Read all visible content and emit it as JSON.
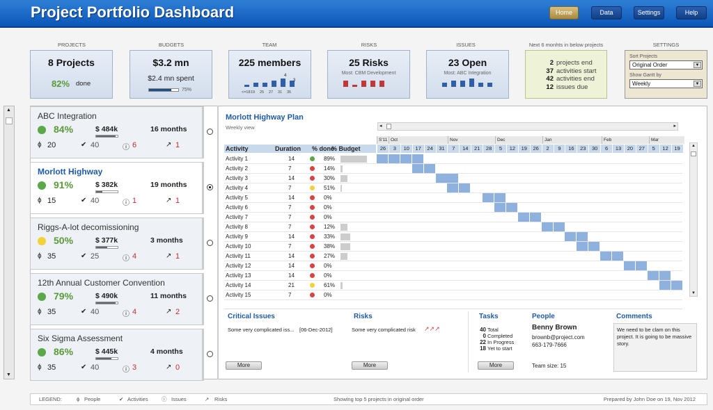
{
  "header": {
    "title": "Project Portfolio Dashboard",
    "nav": [
      "Home",
      "Data",
      "Settings",
      "Help"
    ]
  },
  "kpis": {
    "projects": {
      "label": "PROJECTS",
      "value": "8 Projects",
      "pct": "82%",
      "pct_suffix": "done"
    },
    "budgets": {
      "label": "BUDGETS",
      "value": "$3.2 mn",
      "spent": "$2.4 mn spent",
      "bar_pct": "75%",
      "fill": 0.75
    },
    "team": {
      "label": "TEAM",
      "value": "225 members",
      "ticks": [
        "<=18",
        "19",
        "25",
        "27",
        "31",
        "35"
      ],
      "top_labels": [
        "4",
        "3"
      ],
      "heights": [
        1,
        2,
        2,
        3,
        4,
        3
      ]
    },
    "risks": {
      "label": "RISKS",
      "value": "25 Risks",
      "most": "Most: CBM Development",
      "heights": [
        3,
        1,
        3,
        3,
        3
      ]
    },
    "issues": {
      "label": "ISSUES",
      "value": "23 Open",
      "most": "Most: ABC Integration",
      "heights": [
        2,
        3,
        3,
        4,
        2,
        2
      ]
    }
  },
  "next": {
    "label": "Next 6 monhts in below projects",
    "items": [
      {
        "n": "2",
        "t": "projects end"
      },
      {
        "n": "37",
        "t": "activities start"
      },
      {
        "n": "42",
        "t": "activities end"
      },
      {
        "n": "12",
        "t": "issues due"
      }
    ]
  },
  "settings": {
    "label": "SETTINGS",
    "sort_label": "Sort Projects",
    "sort_value": "Original Order",
    "gantt_label": "Show Gantt by",
    "gantt_value": "Weekly"
  },
  "projects": [
    {
      "name": "ABC Integration",
      "pct": "84%",
      "status": "green",
      "budget": "$ 484k",
      "fill": 0.9,
      "months": "16 months",
      "people": "20",
      "acts": "40",
      "issues": "6",
      "risks": "1"
    },
    {
      "name": "Morlott Highway",
      "pct": "91%",
      "status": "green",
      "budget": "$ 382k",
      "fill": 0.3,
      "months": "19 months",
      "people": "15",
      "acts": "40",
      "issues": "1",
      "risks": "1"
    },
    {
      "name": "Riggs-A-lot decomissioning",
      "pct": "50%",
      "status": "yellow",
      "budget": "$ 377k",
      "fill": 0.5,
      "months": "3 months",
      "people": "35",
      "acts": "25",
      "issues": "4",
      "risks": "1"
    },
    {
      "name": "12th Annual Customer Convention",
      "pct": "79%",
      "status": "green",
      "budget": "$ 490k",
      "fill": 0.9,
      "months": "11 months",
      "people": "35",
      "acts": "40",
      "issues": "4",
      "risks": "2"
    },
    {
      "name": "Six Sigma Assessment",
      "pct": "86%",
      "status": "green",
      "budget": "$ 445k",
      "fill": 0.7,
      "months": "4 months",
      "people": "35",
      "acts": "40",
      "issues": "3",
      "risks": "0"
    }
  ],
  "plan": {
    "title": "Morlott Highway Plan",
    "subtitle": "Weekly view",
    "cols": {
      "activity": "Activity",
      "duration": "Duration",
      "done": "% done",
      "budget": "% Budget"
    },
    "months": [
      "S'11",
      "Oct",
      "Nov",
      "Dec",
      "Jan",
      "Feb",
      "Mar"
    ],
    "weeks": [
      "26",
      "3",
      "10",
      "17",
      "24",
      "31",
      "7",
      "14",
      "21",
      "28",
      "5",
      "12",
      "19",
      "26",
      "2",
      "9",
      "16",
      "23",
      "30",
      "6",
      "13",
      "20",
      "27",
      "5",
      "12",
      "19"
    ],
    "activities": [
      {
        "n": "Activity 1",
        "d": "14",
        "s": "green",
        "p": "89%",
        "b": 0.95,
        "st": 0,
        "len": 4
      },
      {
        "n": "Activity 2",
        "d": "7",
        "s": "red",
        "p": "14%",
        "b": 0.08,
        "st": 3,
        "len": 2
      },
      {
        "n": "Activity 3",
        "d": "14",
        "s": "red",
        "p": "30%",
        "b": 0.25,
        "st": 5,
        "len": 2
      },
      {
        "n": "Activity 4",
        "d": "7",
        "s": "yellow",
        "p": "51%",
        "b": 0.05,
        "st": 6,
        "len": 2
      },
      {
        "n": "Activity 5",
        "d": "14",
        "s": "red",
        "p": "0%",
        "b": 0,
        "st": 9,
        "len": 2
      },
      {
        "n": "Activity 6",
        "d": "7",
        "s": "red",
        "p": "0%",
        "b": 0,
        "st": 10,
        "len": 2
      },
      {
        "n": "Activity 7",
        "d": "7",
        "s": "red",
        "p": "0%",
        "b": 0,
        "st": 12,
        "len": 2
      },
      {
        "n": "Activity 8",
        "d": "7",
        "s": "red",
        "p": "12%",
        "b": 0.25,
        "st": 14,
        "len": 2
      },
      {
        "n": "Activity 9",
        "d": "14",
        "s": "red",
        "p": "33%",
        "b": 0.35,
        "st": 16,
        "len": 2
      },
      {
        "n": "Activity 10",
        "d": "7",
        "s": "red",
        "p": "38%",
        "b": 0.35,
        "st": 17,
        "len": 2
      },
      {
        "n": "Activity 11",
        "d": "14",
        "s": "red",
        "p": "27%",
        "b": 0.25,
        "st": 19,
        "len": 2
      },
      {
        "n": "Activity 12",
        "d": "14",
        "s": "red",
        "p": "0%",
        "b": 0,
        "st": 21,
        "len": 2
      },
      {
        "n": "Activity 13",
        "d": "14",
        "s": "red",
        "p": "0%",
        "b": 0,
        "st": 23,
        "len": 2
      },
      {
        "n": "Activity 14",
        "d": "21",
        "s": "yellow",
        "p": "61%",
        "b": 0.08,
        "st": 24,
        "len": 2
      },
      {
        "n": "Activity 15",
        "d": "7",
        "s": "red",
        "p": "0%",
        "b": 0,
        "st": 26,
        "len": 0
      }
    ]
  },
  "bottom": {
    "critical": {
      "title": "Critical Issues",
      "text": "Some very complicated iss...",
      "date": "[06-Dec-2012]",
      "more": "More"
    },
    "risks": {
      "title": "Risks",
      "text": "Some very complicated risk",
      "marks": "↗↗↗",
      "more": "More"
    },
    "tasks": {
      "title": "Tasks",
      "items": [
        {
          "n": "40",
          "t": "Total"
        },
        {
          "n": "0",
          "t": "Completed"
        },
        {
          "n": "22",
          "t": "In Progress"
        },
        {
          "n": "18",
          "t": "Yet to start"
        }
      ],
      "more": "More"
    },
    "people": {
      "title": "People",
      "name": "Benny Brown",
      "email": "brownb@project.com",
      "phone": "663-179-7666",
      "team": "Team size: 15"
    },
    "comments": {
      "title": "Comments",
      "text": "We need to be clam on this project. It is going to be massive story."
    }
  },
  "footer": {
    "legend": "LEGEND:",
    "people": "People",
    "acts": "Activities",
    "issues": "Issues",
    "risks": "Risks",
    "showing": "Showing top 5 projects in original order",
    "prepared": "Prepared by John Doe on 19, Nov 2012"
  },
  "colors": {
    "green": "#5aa84a",
    "yellow": "#f2d13a",
    "red": "#d84343"
  }
}
